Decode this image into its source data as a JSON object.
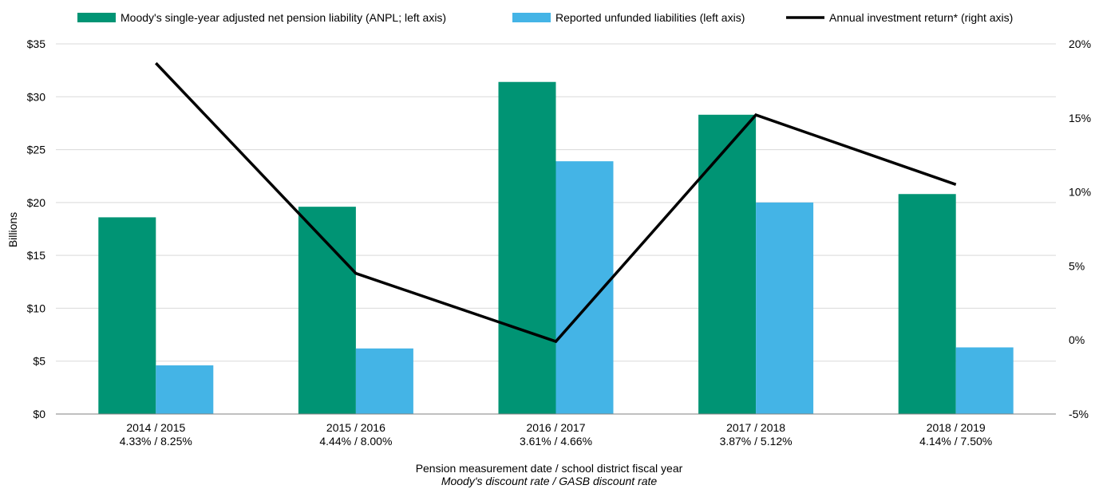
{
  "chart_data": {
    "type": "bar",
    "categories": [
      "2014 / 2015",
      "2015 / 2016",
      "2016 / 2017",
      "2017 / 2018",
      "2018 / 2019"
    ],
    "category_sublabels": [
      "4.33% / 8.25%",
      "4.44% / 8.00%",
      "3.61% / 4.66%",
      "3.87% / 5.12%",
      "4.14% / 7.50%"
    ],
    "series": [
      {
        "name": "Moody's single-year adjusted net pension liability (ANPL; left axis)",
        "type": "bar",
        "axis": "left",
        "color": "#009474",
        "values": [
          18.6,
          19.6,
          31.4,
          28.3,
          20.8
        ]
      },
      {
        "name": "Reported unfunded liabilities (left axis)",
        "type": "bar",
        "axis": "left",
        "color": "#44B4E6",
        "values": [
          4.6,
          6.2,
          23.9,
          20.0,
          6.3
        ]
      },
      {
        "name": "Annual investment return* (right axis)",
        "type": "line",
        "axis": "right",
        "color": "#000000",
        "values": [
          18.7,
          4.5,
          -0.1,
          15.2,
          10.5
        ]
      }
    ],
    "ylabel": "Billions",
    "xlabel_line1": "Pension measurement date / school district fiscal year",
    "xlabel_line2": "Moody's discount rate / GASB discount rate",
    "ylim": [
      0,
      35
    ],
    "y_ticks": [
      "$0",
      "$5",
      "$10",
      "$15",
      "$20",
      "$25",
      "$30",
      "$35"
    ],
    "y2lim": [
      -5,
      20
    ],
    "y2_ticks": [
      "-5%",
      "0%",
      "5%",
      "10%",
      "15%",
      "20%"
    ],
    "grid": true,
    "legend_position": "top"
  }
}
